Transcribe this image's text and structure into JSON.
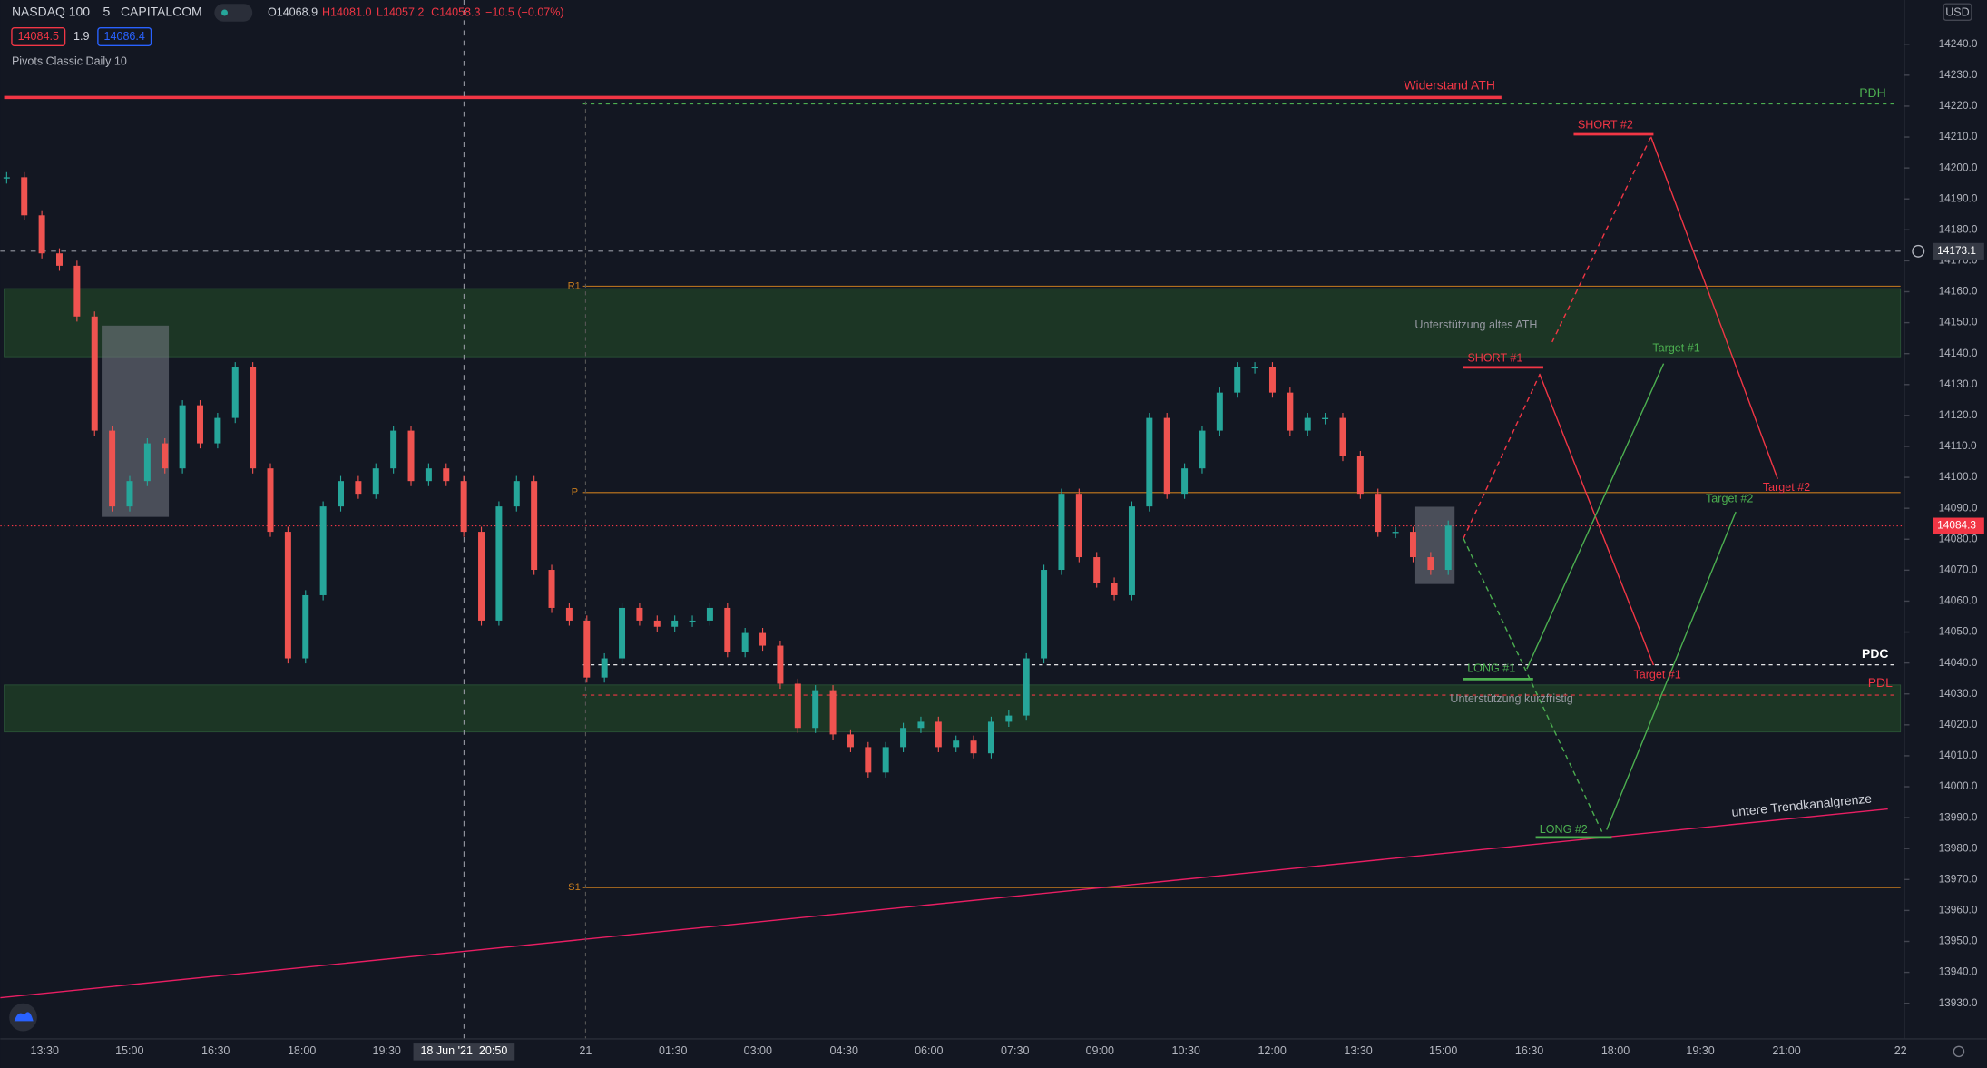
{
  "header": {
    "symbol": "NASDAQ 100",
    "interval": "5",
    "exchange": "CAPITALCOM",
    "ohlc": [
      "O14068.9",
      "H14081.0",
      "L14057.2",
      "C14058.3",
      "−10.5 (−0.07%)"
    ],
    "sell": "14084.5",
    "spread": "1.9",
    "buy": "14086.4",
    "indicator": "Pivots Classic Daily 10",
    "currency": "USD"
  },
  "chart_data": {
    "type": "candlestick",
    "ylim": [
      13918.5,
      14254.3
    ],
    "yticks": [
      {
        "value": 14240,
        "label": "14240.0"
      },
      {
        "value": 14230,
        "label": "14230.0"
      },
      {
        "value": 14220,
        "label": "14220.0"
      },
      {
        "value": 14210,
        "label": "14210.0"
      },
      {
        "value": 14200,
        "label": "14200.0"
      },
      {
        "value": 14190,
        "label": "14190.0"
      },
      {
        "value": 14180,
        "label": "14180.0"
      },
      {
        "value": 14170,
        "label": "14170.0"
      },
      {
        "value": 14160,
        "label": "14160.0"
      },
      {
        "value": 14150,
        "label": "14150.0"
      },
      {
        "value": 14140,
        "label": "14140.0"
      },
      {
        "value": 14130,
        "label": "14130.0"
      },
      {
        "value": 14120,
        "label": "14120.0"
      },
      {
        "value": 14110,
        "label": "14110.0"
      },
      {
        "value": 14100,
        "label": "14100.0"
      },
      {
        "value": 14090,
        "label": "14090.0"
      },
      {
        "value": 14080,
        "label": "14080.0"
      },
      {
        "value": 14070,
        "label": "14070.0"
      },
      {
        "value": 14060,
        "label": "14060.0"
      },
      {
        "value": 14050,
        "label": "14050.0"
      },
      {
        "value": 14040,
        "label": "14040.0"
      },
      {
        "value": 14030,
        "label": "14030.0"
      },
      {
        "value": 14020,
        "label": "14020.0"
      },
      {
        "value": 14010,
        "label": "14010.0"
      },
      {
        "value": 14000,
        "label": "14000.0"
      },
      {
        "value": 13990,
        "label": "13990.0"
      },
      {
        "value": 13980,
        "label": "13980.0"
      },
      {
        "value": 13970,
        "label": "13970.0"
      },
      {
        "value": 13960,
        "label": "13960.0"
      },
      {
        "value": 13950,
        "label": "13950.0"
      },
      {
        "value": 13940,
        "label": "13940.0"
      },
      {
        "value": 13930,
        "label": "13930.0"
      }
    ],
    "x_labels": [
      "13:30",
      "15:00",
      "16:30",
      "18:00",
      "19:30",
      "21",
      "01:30",
      "03:00",
      "04:30",
      "06:00",
      "07:30",
      "09:00",
      "10:30",
      "12:00",
      "13:30",
      "15:00",
      "16:30",
      "18:00",
      "19:30",
      "21:00",
      "22"
    ],
    "cursor_time": "18 Jun '21  20:50",
    "cursor_price": 14173.1,
    "last_price": 14084.3,
    "up_color": "#26a69a",
    "down_color": "#ef5350",
    "closes": [
      14197.0,
      14184.7,
      14172.4,
      14168.4,
      14152.0,
      14115.1,
      14090.6,
      14098.8,
      14111.0,
      14102.9,
      14123.3,
      14111.0,
      14119.2,
      14135.6,
      14102.9,
      14082.4,
      14041.5,
      14061.9,
      14090.6,
      14098.8,
      14094.7,
      14102.9,
      14115.1,
      14098.8,
      14102.9,
      14098.8,
      14082.4,
      14053.7,
      14090.6,
      14098.8,
      14070.1,
      14057.8,
      14053.7,
      14035.3,
      14041.5,
      14057.8,
      14053.7,
      14051.7,
      14053.7,
      14053.7,
      14057.8,
      14043.5,
      14049.7,
      14045.6,
      14033.3,
      14019.0,
      14031.2,
      14016.9,
      14012.8,
      14004.6,
      14012.8,
      14019.0,
      14021.0,
      14012.8,
      14014.9,
      14010.8,
      14021.0,
      14023.0,
      14041.5,
      14070.1,
      14094.7,
      14074.2,
      14066.0,
      14061.9,
      14090.6,
      14119.2,
      14094.7,
      14102.9,
      14115.1,
      14127.4,
      14135.6,
      14135.6,
      14127.4,
      14115.1,
      14119.2,
      14119.2,
      14106.9,
      14094.7,
      14082.4,
      14082.4,
      14074.2,
      14070.1,
      14084.4
    ],
    "levels": [
      {
        "name": "Widerstand ATH",
        "value": 14222.8,
        "color": "#f23645"
      },
      {
        "name": "PDH",
        "value": 14220.7,
        "color": "#4caf50"
      },
      {
        "name": "R1",
        "value": 14161.8,
        "color": "#c77c1e"
      },
      {
        "name": "P",
        "value": 14095.1,
        "color": "#c77c1e"
      },
      {
        "name": "PDC",
        "value": 14039.4,
        "color": "#ffffff"
      },
      {
        "name": "PDL",
        "value": 14029.6,
        "color": "#f23645"
      },
      {
        "name": "S1",
        "value": 13967.4,
        "color": "#c77c1e"
      }
    ],
    "zones": [
      {
        "name": "Unterstützung altes ATH",
        "top": 14161.0,
        "bottom": 14139.0
      },
      {
        "name": "Unterstützung kurzfristig",
        "top": 14032.9,
        "bottom": 14017.7
      }
    ],
    "trendline": {
      "name": "untere Trendkanalgrenze",
      "start": 13931.8,
      "end": 13992.8
    },
    "trade_labels": [
      "SHORT #1",
      "SHORT #2",
      "LONG #1",
      "LONG #2",
      "Target #1",
      "Target #2",
      "Target #1",
      "Target #2"
    ]
  }
}
